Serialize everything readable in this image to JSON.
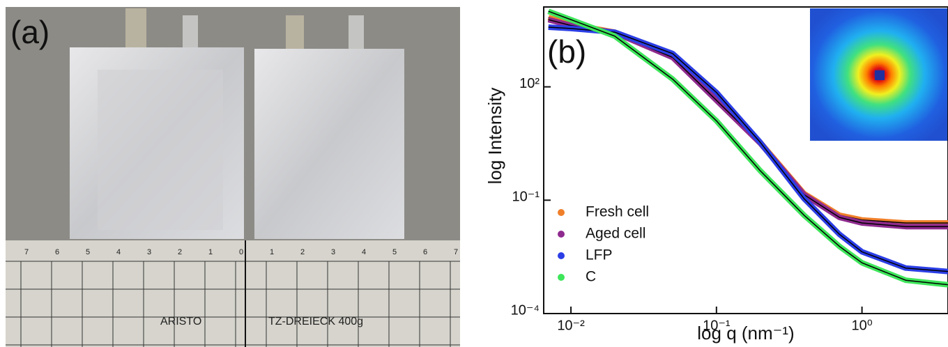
{
  "photo": {
    "label": "(a)",
    "ruler_brand": "ARISTO",
    "ruler_model": "TZ-DREIECK 400g",
    "ruler_numbers": [
      "7",
      "6",
      "5",
      "4",
      "3",
      "2",
      "1",
      "0",
      "1",
      "2",
      "3",
      "4",
      "5",
      "6",
      "7"
    ]
  },
  "chart_data": {
    "type": "line",
    "label": "(b)",
    "y_label": "log Intensity",
    "x_label": "log q (nm⁻¹)",
    "log_x": true,
    "log_y": true,
    "legend": "lower-left",
    "x": [
      0.007,
      0.01,
      0.02,
      0.05,
      0.1,
      0.2,
      0.4,
      0.7,
      1,
      2,
      3.9
    ],
    "xlim": [
      0.0065,
      3.9
    ],
    "ylim": [
      0.0001,
      13000
    ],
    "xticks": [
      {
        "value": 0.01,
        "label": "10⁻²"
      },
      {
        "value": 0.1,
        "label": "10⁻¹"
      },
      {
        "value": 1,
        "label": "10⁰"
      }
    ],
    "yticks": [
      {
        "value": 0.0001,
        "label": "10⁻⁴"
      },
      {
        "value": 0.1,
        "label": "10⁻¹"
      },
      {
        "value": 100,
        "label": "10²"
      }
    ],
    "series": [
      {
        "name": "Fresh cell",
        "color": "#f07f2a",
        "values": [
          6800,
          4500,
          2800,
          630,
          46,
          3.4,
          0.15,
          0.04,
          0.03,
          0.025,
          0.025
        ]
      },
      {
        "name": "Aged cell",
        "color": "#8e2a8e",
        "values": [
          6000,
          4200,
          2700,
          600,
          44,
          3.2,
          0.14,
          0.035,
          0.025,
          0.02,
          0.02
        ]
      },
      {
        "name": "LFP",
        "color": "#2b3ee6",
        "values": [
          3800,
          3500,
          2800,
          760,
          71,
          3.4,
          0.11,
          0.0125,
          0.0043,
          0.0016,
          0.0013
        ]
      },
      {
        "name": "C",
        "color": "#3ee65a",
        "values": [
          10000,
          6000,
          2200,
          160,
          12.6,
          0.6,
          0.04,
          0.006,
          0.0022,
          0.00076,
          0.00058
        ]
      }
    ]
  }
}
